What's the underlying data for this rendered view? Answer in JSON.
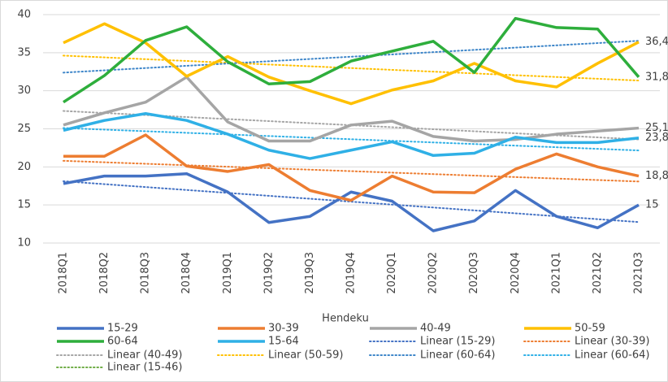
{
  "chart_data": {
    "type": "line",
    "x_label": "Hendeku",
    "categories": [
      "2018Q1",
      "2018Q2",
      "2018Q3",
      "2018Q4",
      "2019Q1",
      "2019Q2",
      "2019Q3",
      "2019Q4",
      "2020Q1",
      "2020Q2",
      "2020Q3",
      "2020Q4",
      "2021Q1",
      "2021Q2",
      "2021Q3"
    ],
    "ylim": [
      10,
      40
    ],
    "yticks": [
      10,
      15,
      20,
      25,
      30,
      35,
      40
    ],
    "grid": true,
    "legend": "bottom",
    "series": [
      {
        "name": "15-29",
        "color": "#4472c4",
        "values": [
          17.8,
          18.8,
          18.8,
          19.1,
          16.7,
          12.7,
          13.5,
          16.7,
          15.5,
          11.6,
          12.9,
          16.9,
          13.5,
          12.0,
          15
        ]
      },
      {
        "name": "30-39",
        "color": "#ed7d31",
        "values": [
          21.4,
          21.4,
          24.2,
          20.1,
          19.4,
          20.3,
          16.9,
          15.6,
          18.8,
          16.7,
          16.6,
          19.7,
          21.7,
          20.0,
          18.8
        ],
        "value_labels": [
          null,
          null,
          null,
          null,
          null,
          null,
          null,
          null,
          null,
          null,
          null,
          null,
          null,
          null,
          "18,8"
        ]
      },
      {
        "name": "40-49",
        "color": "#a5a5a5",
        "values": [
          25.5,
          27.1,
          28.5,
          31.8,
          25.9,
          23.4,
          23.4,
          25.5,
          26.0,
          24.0,
          23.4,
          23.6,
          24.3,
          24.7,
          25.1
        ],
        "value_labels": [
          null,
          null,
          null,
          null,
          null,
          null,
          null,
          null,
          null,
          null,
          null,
          null,
          null,
          null,
          "25,1"
        ]
      },
      {
        "name": "50-59",
        "color": "#ffc000",
        "values": [
          36.3,
          38.8,
          36.3,
          31.9,
          34.5,
          31.8,
          30.0,
          28.3,
          30.1,
          31.3,
          33.6,
          31.3,
          30.5,
          33.6,
          36.4
        ],
        "value_labels": [
          null,
          null,
          null,
          null,
          null,
          null,
          null,
          null,
          null,
          null,
          null,
          null,
          null,
          null,
          "36,4"
        ]
      },
      {
        "name": "60-64",
        "color": "#2eae3c",
        "values": [
          28.5,
          32.0,
          36.6,
          38.4,
          33.8,
          30.9,
          31.2,
          33.9,
          35.2,
          36.5,
          32.4,
          39.5,
          38.3,
          38.1,
          31.8
        ],
        "value_labels": [
          null,
          null,
          null,
          null,
          null,
          null,
          null,
          null,
          null,
          null,
          null,
          null,
          null,
          null,
          "31,8"
        ]
      },
      {
        "name": "15-64",
        "color": "#2fb0e6",
        "values": [
          24.8,
          26.1,
          27.0,
          26.1,
          24.3,
          22.2,
          21.1,
          22.2,
          23.3,
          21.5,
          21.8,
          23.9,
          23.2,
          23.2,
          23.8
        ],
        "value_labels": [
          null,
          null,
          null,
          null,
          null,
          null,
          null,
          null,
          null,
          null,
          null,
          null,
          null,
          null,
          "23,8"
        ]
      }
    ],
    "trendlines": [
      {
        "name": "Linear (15-29)",
        "color": "#4472c4"
      },
      {
        "name": "Linear (30-39)",
        "color": "#ed7d31"
      },
      {
        "name": "Linear (40-49)",
        "color": "#a5a5a5"
      },
      {
        "name": "Linear (50-59)",
        "color": "#ffc000"
      },
      {
        "name": "Linear (60-64)",
        "color": "#3e86c9"
      },
      {
        "name": "Linear (60-64)",
        "color": "#2fb0e6"
      },
      {
        "name": "Linear (15-46)",
        "color": "#70ad47"
      }
    ]
  }
}
